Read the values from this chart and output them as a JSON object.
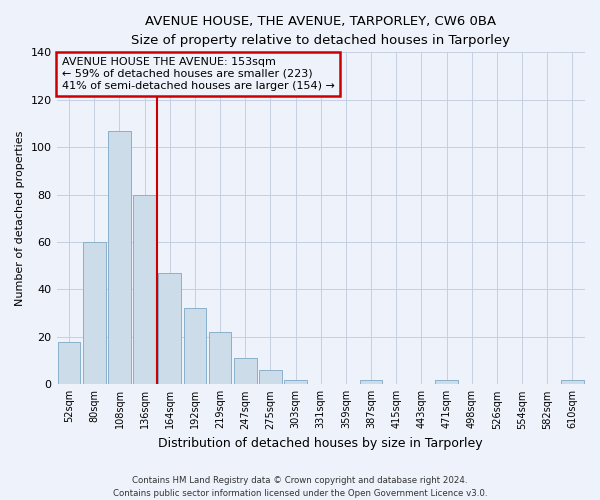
{
  "title": "AVENUE HOUSE, THE AVENUE, TARPORLEY, CW6 0BA",
  "subtitle": "Size of property relative to detached houses in Tarporley",
  "xlabel": "Distribution of detached houses by size in Tarporley",
  "ylabel": "Number of detached properties",
  "bin_labels": [
    "52sqm",
    "80sqm",
    "108sqm",
    "136sqm",
    "164sqm",
    "192sqm",
    "219sqm",
    "247sqm",
    "275sqm",
    "303sqm",
    "331sqm",
    "359sqm",
    "387sqm",
    "415sqm",
    "443sqm",
    "471sqm",
    "498sqm",
    "526sqm",
    "554sqm",
    "582sqm",
    "610sqm"
  ],
  "bar_values": [
    18,
    60,
    107,
    80,
    47,
    32,
    22,
    11,
    6,
    2,
    0,
    0,
    2,
    0,
    0,
    2,
    0,
    0,
    0,
    0,
    2
  ],
  "bar_color": "#ccdce8",
  "bar_edge_color": "#8ab0cc",
  "ylim": [
    0,
    140
  ],
  "yticks": [
    0,
    20,
    40,
    60,
    80,
    100,
    120,
    140
  ],
  "property_line_color": "#cc0000",
  "annotation_line1": "AVENUE HOUSE THE AVENUE: 153sqm",
  "annotation_line2": "← 59% of detached houses are smaller (223)",
  "annotation_line3": "41% of semi-detached houses are larger (154) →",
  "annotation_box_color": "#cc0000",
  "footer_line1": "Contains HM Land Registry data © Crown copyright and database right 2024.",
  "footer_line2": "Contains public sector information licensed under the Open Government Licence v3.0.",
  "bg_color": "#eef2fb",
  "grid_color": "#c5cfe0"
}
